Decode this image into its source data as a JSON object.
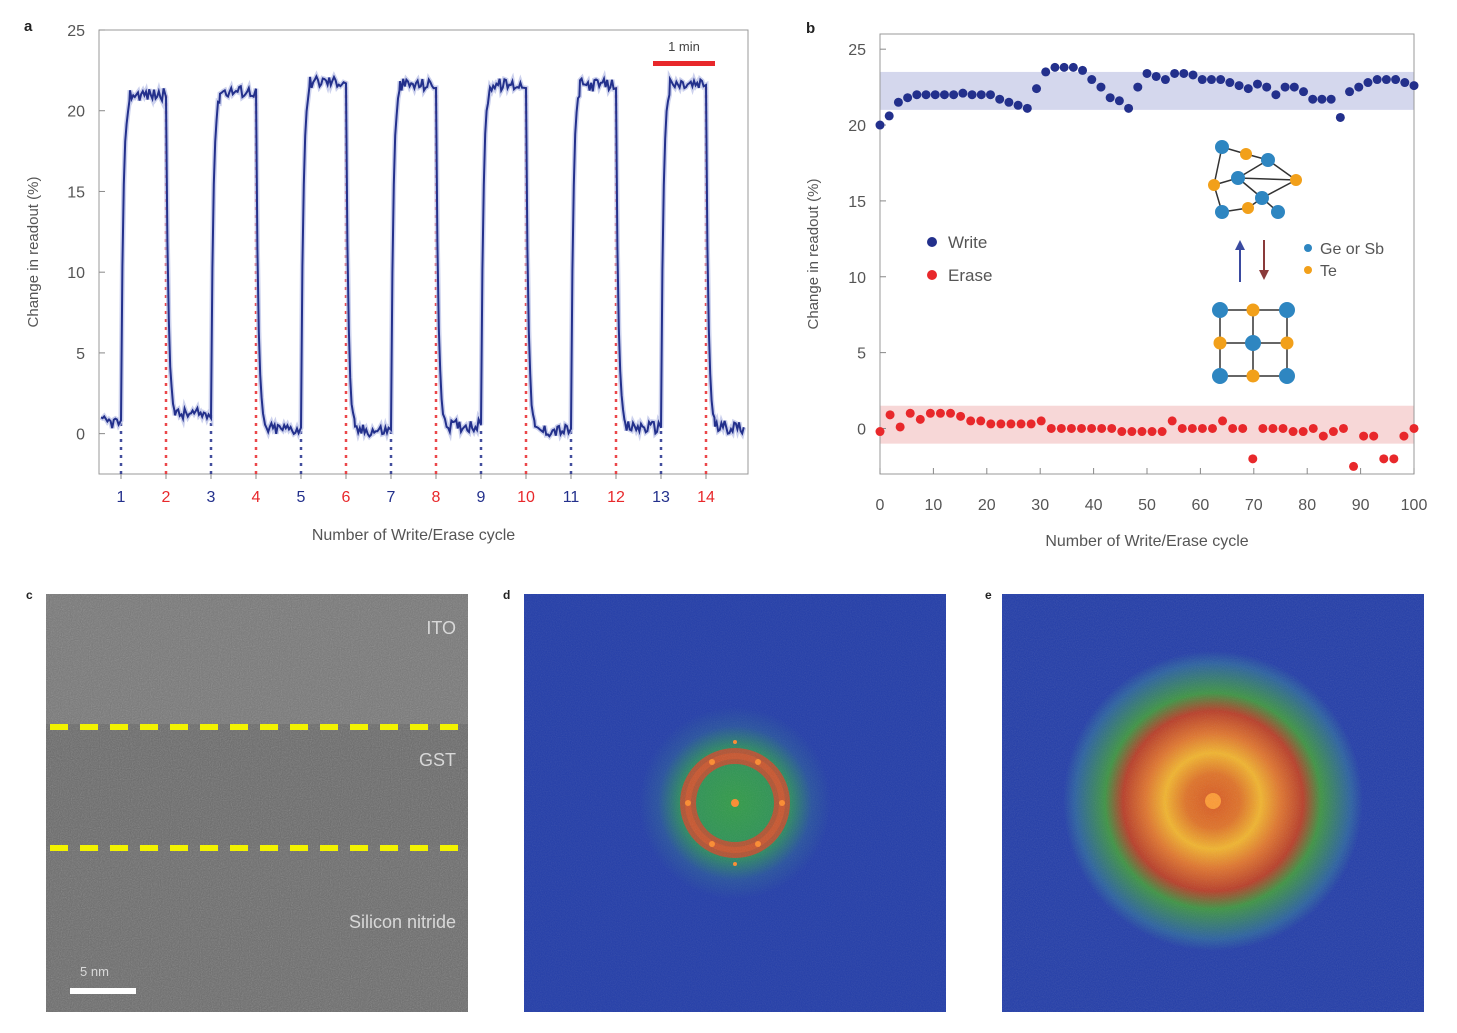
{
  "panels": {
    "a": {
      "label": "a"
    },
    "b": {
      "label": "b"
    },
    "c": {
      "label": "c",
      "layers": [
        "ITO",
        "GST",
        "Silicon nitride"
      ],
      "scale_bar": "5 nm"
    },
    "d": {
      "label": "d"
    },
    "e": {
      "label": "e"
    }
  },
  "colors": {
    "write": "#23308c",
    "erase": "#e8282b",
    "write_band": "#c9cde9",
    "erase_band": "#f6d3d3",
    "tem_gray": "#6e6e6e",
    "dash_yellow": "#f2f200",
    "fft_bg": "#1f3aa8"
  },
  "chart_data": [
    {
      "type": "line",
      "panel": "a",
      "xlabel": "Number of Write/Erase cycle",
      "ylabel": "Change in readout (%)",
      "ylim": [
        -2.5,
        25
      ],
      "yticks": [
        0,
        5,
        10,
        15,
        20,
        25
      ],
      "cycle_labels": [
        "1",
        "2",
        "3",
        "4",
        "5",
        "6",
        "7",
        "8",
        "9",
        "10",
        "11",
        "12",
        "13",
        "14"
      ],
      "cycle_types": [
        "write",
        "erase",
        "write",
        "erase",
        "write",
        "erase",
        "write",
        "erase",
        "write",
        "erase",
        "write",
        "erase",
        "write",
        "erase"
      ],
      "high_levels": [
        21,
        21.2,
        21.8,
        21.6,
        21.6,
        21.6,
        21.6
      ],
      "low_levels": [
        0.7,
        1.2,
        0.3,
        0.2,
        0.5,
        0.2,
        0.4,
        0.4
      ],
      "scale_bar_label": "1 min"
    },
    {
      "type": "scatter",
      "panel": "b",
      "xlabel": "Number of Write/Erase cycle",
      "ylabel": "Change in readout (%)",
      "xlim": [
        0,
        100
      ],
      "ylim": [
        -3,
        26
      ],
      "xticks": [
        0,
        10,
        20,
        30,
        40,
        50,
        60,
        70,
        80,
        90,
        100
      ],
      "yticks": [
        0,
        5,
        10,
        15,
        20,
        25
      ],
      "write_band": [
        21.0,
        23.5
      ],
      "erase_band": [
        -1.0,
        1.5
      ],
      "series": [
        {
          "name": "Write",
          "values": [
            20.0,
            20.6,
            21.5,
            21.8,
            22.0,
            22.0,
            22.0,
            22.0,
            22.0,
            22.1,
            22.0,
            22.0,
            22.0,
            21.7,
            21.5,
            21.3,
            21.1,
            22.4,
            23.5,
            23.8,
            23.8,
            23.8,
            23.6,
            23.0,
            22.5,
            21.8,
            21.6,
            21.1,
            22.5,
            23.4,
            23.2,
            23.0,
            23.4,
            23.4,
            23.3,
            23.0,
            23.0,
            23.0,
            22.8,
            22.6,
            22.4,
            22.7,
            22.5,
            22.0,
            22.5,
            22.5,
            22.2,
            21.7,
            21.7,
            21.7,
            20.5,
            22.2,
            22.5,
            22.8,
            23.0,
            23.0,
            23.0,
            22.8,
            22.6
          ]
        },
        {
          "name": "Erase",
          "values": [
            -0.2,
            0.9,
            0.1,
            1.0,
            0.6,
            1.0,
            1.0,
            1.0,
            0.8,
            0.5,
            0.5,
            0.3,
            0.3,
            0.3,
            0.3,
            0.3,
            0.5,
            0.0,
            0.0,
            0.0,
            0.0,
            0.0,
            0.0,
            0.0,
            -0.2,
            -0.2,
            -0.2,
            -0.2,
            -0.2,
            0.5,
            0.0,
            0.0,
            0.0,
            0.0,
            0.5,
            0.0,
            0.0,
            -2.0,
            0.0,
            0.0,
            0.0,
            -0.2,
            -0.2,
            0.0,
            -0.5,
            -0.2,
            0.0,
            -2.5,
            -0.5,
            -0.5,
            -2.0,
            -2.0,
            -0.5,
            0.0
          ]
        }
      ],
      "legend": [
        "Write",
        "Erase"
      ],
      "inset_legend": [
        "Ge or Sb",
        "Te"
      ]
    }
  ]
}
